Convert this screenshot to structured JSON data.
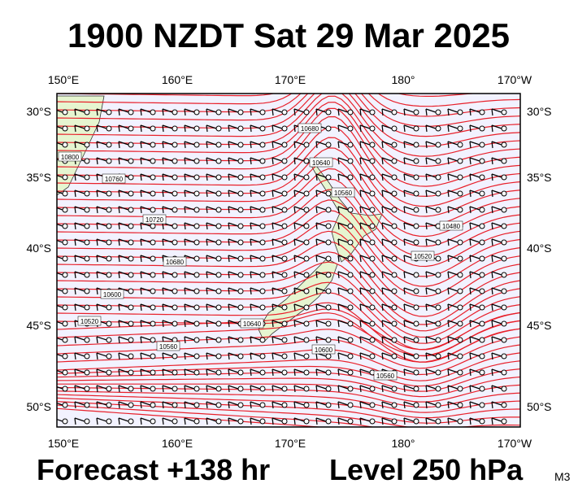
{
  "header": {
    "title": "1900 NZDT Sat 29 Mar 2025"
  },
  "map": {
    "top_labels": [
      "150°E",
      "160°E",
      "170°E",
      "180°",
      "170°W"
    ],
    "bottom_labels": [
      "150°E",
      "160°E",
      "170°E",
      "180°",
      "170°W"
    ],
    "left_labels": [
      "30°S",
      "35°S",
      "40°S",
      "45°S",
      "50°S"
    ],
    "right_labels": [
      "30°S",
      "35°S",
      "40°S",
      "45°S",
      "50°S"
    ],
    "contour_labels": [
      "10680",
      "10800",
      "10760",
      "10720",
      "10680",
      "10600",
      "10520",
      "10560",
      "10640",
      "10600",
      "10560",
      "10480",
      "10520",
      "10560",
      "10640"
    ]
  },
  "footer": {
    "forecast": "Forecast +138 hr",
    "level": "Level 250 hPa",
    "code": "M3"
  }
}
